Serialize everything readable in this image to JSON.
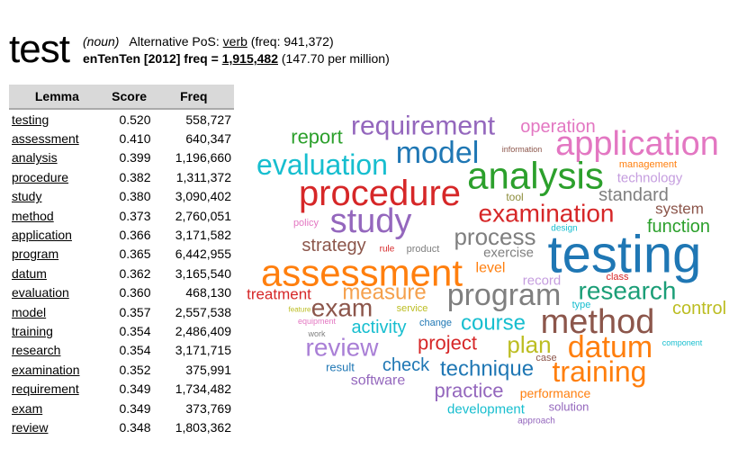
{
  "header": {
    "lemma": "test",
    "pos": "(noun)",
    "alt_label": "Alternative PoS:",
    "alt_pos": "verb",
    "alt_freq": "(freq: 941,372)",
    "corpus": "enTenTen [2012] freq =",
    "freq": "1,915,482",
    "per_million": "(147.70 per million)"
  },
  "table": {
    "columns": [
      "Lemma",
      "Score",
      "Freq"
    ],
    "rows": [
      [
        "testing",
        "0.520",
        "558,727"
      ],
      [
        "assessment",
        "0.410",
        "640,347"
      ],
      [
        "analysis",
        "0.399",
        "1,196,660"
      ],
      [
        "procedure",
        "0.382",
        "1,311,372"
      ],
      [
        "study",
        "0.380",
        "3,090,402"
      ],
      [
        "method",
        "0.373",
        "2,760,051"
      ],
      [
        "application",
        "0.366",
        "3,171,582"
      ],
      [
        "program",
        "0.365",
        "6,442,955"
      ],
      [
        "datum",
        "0.362",
        "3,165,540"
      ],
      [
        "evaluation",
        "0.360",
        "468,130"
      ],
      [
        "model",
        "0.357",
        "2,557,538"
      ],
      [
        "training",
        "0.354",
        "2,486,409"
      ],
      [
        "research",
        "0.354",
        "3,171,715"
      ],
      [
        "examination",
        "0.352",
        "375,991"
      ],
      [
        "requirement",
        "0.349",
        "1,734,482"
      ],
      [
        "exam",
        "0.349",
        "373,769"
      ],
      [
        "review",
        "0.348",
        "1,803,362"
      ]
    ]
  },
  "word_cloud": {
    "words": [
      {
        "text": "requirement",
        "color": "#9467bd"
      },
      {
        "text": "operation",
        "color": "#e377c2"
      },
      {
        "text": "report",
        "color": "#2ca02c"
      },
      {
        "text": "application",
        "color": "#e377c2"
      },
      {
        "text": "model",
        "color": "#1f77b4"
      },
      {
        "text": "information",
        "color": "#8c564b"
      },
      {
        "text": "evaluation",
        "color": "#17becf"
      },
      {
        "text": "analysis",
        "color": "#2ca02c"
      },
      {
        "text": "management",
        "color": "#ff7f0e"
      },
      {
        "text": "technology",
        "color": "#c59ddf"
      },
      {
        "text": "procedure",
        "color": "#d62728"
      },
      {
        "text": "standard",
        "color": "#7f7f7f"
      },
      {
        "text": "tool",
        "color": "#8c8c3a"
      },
      {
        "text": "system",
        "color": "#8c564b"
      },
      {
        "text": "study",
        "color": "#9467bd"
      },
      {
        "text": "examination",
        "color": "#d62728"
      },
      {
        "text": "policy",
        "color": "#e377c2"
      },
      {
        "text": "design",
        "color": "#17becf"
      },
      {
        "text": "function",
        "color": "#2ca02c"
      },
      {
        "text": "process",
        "color": "#7f7f7f"
      },
      {
        "text": "testing",
        "color": "#1f77b4"
      },
      {
        "text": "strategy",
        "color": "#8c564b"
      },
      {
        "text": "rule",
        "color": "#d62728"
      },
      {
        "text": "product",
        "color": "#7f7f7f"
      },
      {
        "text": "exercise",
        "color": "#7f7f7f"
      },
      {
        "text": "assessment",
        "color": "#ff7f0e"
      },
      {
        "text": "level",
        "color": "#ff7f0e"
      },
      {
        "text": "record",
        "color": "#c59ddf"
      },
      {
        "text": "class",
        "color": "#d62728"
      },
      {
        "text": "research",
        "color": "#1b9e77"
      },
      {
        "text": "program",
        "color": "#7f7f7f"
      },
      {
        "text": "measure",
        "color": "#f5a04c"
      },
      {
        "text": "treatment",
        "color": "#d62728"
      },
      {
        "text": "exam",
        "color": "#8c564b"
      },
      {
        "text": "type",
        "color": "#17becf"
      },
      {
        "text": "control",
        "color": "#bcbd22"
      },
      {
        "text": "feature",
        "color": "#bcbd22"
      },
      {
        "text": "service",
        "color": "#bcbd22"
      },
      {
        "text": "method",
        "color": "#8c564b"
      },
      {
        "text": "change",
        "color": "#1f77b4"
      },
      {
        "text": "course",
        "color": "#17becf"
      },
      {
        "text": "equipment",
        "color": "#e377c2"
      },
      {
        "text": "activity",
        "color": "#17becf"
      },
      {
        "text": "work",
        "color": "#7f7f7f"
      },
      {
        "text": "project",
        "color": "#d62728"
      },
      {
        "text": "plan",
        "color": "#bcbd22"
      },
      {
        "text": "datum",
        "color": "#ff7f0e"
      },
      {
        "text": "review",
        "color": "#a97fd6"
      },
      {
        "text": "component",
        "color": "#17becf"
      },
      {
        "text": "case",
        "color": "#8c564b"
      },
      {
        "text": "result",
        "color": "#1f77b4"
      },
      {
        "text": "check",
        "color": "#1f77b4"
      },
      {
        "text": "technique",
        "color": "#1f77b4"
      },
      {
        "text": "training",
        "color": "#ff7f0e"
      },
      {
        "text": "software",
        "color": "#9467bd"
      },
      {
        "text": "practice",
        "color": "#9467bd"
      },
      {
        "text": "performance",
        "color": "#ff7f0e"
      },
      {
        "text": "solution",
        "color": "#9467bd"
      },
      {
        "text": "development",
        "color": "#17becf"
      },
      {
        "text": "approach",
        "color": "#9467bd"
      }
    ]
  }
}
